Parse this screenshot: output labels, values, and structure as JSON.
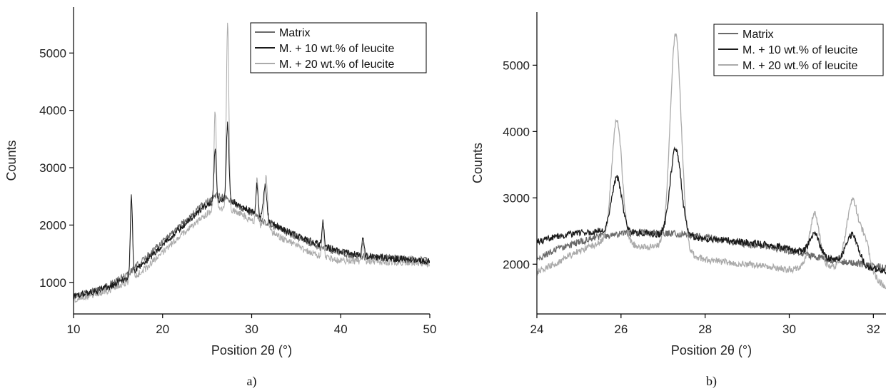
{
  "colors": {
    "matrix": "#6a6a6a",
    "leucite10": "#1a1a1a",
    "leucite20": "#ababab"
  },
  "chart_data": [
    {
      "type": "line",
      "panel_label": "a)",
      "xlabel": "Position 2θ (°)",
      "ylabel": "Counts",
      "xlim": [
        10,
        50
      ],
      "ylim": [
        450,
        5800
      ],
      "xticks": [
        10,
        20,
        30,
        40,
        50
      ],
      "yticks": [
        1000,
        2000,
        3000,
        4000,
        5000
      ],
      "grid": false,
      "legend_position": "top-right",
      "noise": 60,
      "series": [
        {
          "name": "Matrix",
          "color": "#6a6a6a",
          "background": [
            [
              10,
              760
            ],
            [
              12,
              840
            ],
            [
              14,
              950
            ],
            [
              16,
              1130
            ],
            [
              18,
              1420
            ],
            [
              20,
              1720
            ],
            [
              22,
              2000
            ],
            [
              24,
              2280
            ],
            [
              25,
              2420
            ],
            [
              26,
              2510
            ],
            [
              27,
              2480
            ],
            [
              28,
              2380
            ],
            [
              30,
              2200
            ],
            [
              32,
              2010
            ],
            [
              34,
              1860
            ],
            [
              36,
              1720
            ],
            [
              38,
              1590
            ],
            [
              40,
              1500
            ],
            [
              42,
              1450
            ],
            [
              44,
              1440
            ],
            [
              46,
              1420
            ],
            [
              48,
              1400
            ],
            [
              50,
              1380
            ]
          ],
          "peaks": []
        },
        {
          "name": "M. + 10 wt.% of leucite",
          "color": "#1a1a1a",
          "background": [
            [
              10,
              760
            ],
            [
              12,
              830
            ],
            [
              14,
              920
            ],
            [
              16,
              1080
            ],
            [
              18,
              1350
            ],
            [
              20,
              1650
            ],
            [
              22,
              1950
            ],
            [
              24,
              2220
            ],
            [
              25,
              2350
            ],
            [
              26,
              2440
            ],
            [
              27,
              2450
            ],
            [
              28,
              2400
            ],
            [
              30,
              2230
            ],
            [
              32,
              2060
            ],
            [
              34,
              1890
            ],
            [
              36,
              1750
            ],
            [
              38,
              1640
            ],
            [
              40,
              1540
            ],
            [
              42,
              1480
            ],
            [
              44,
              1440
            ],
            [
              46,
              1410
            ],
            [
              48,
              1390
            ],
            [
              50,
              1370
            ]
          ],
          "peaks": [
            [
              16.5,
              1350,
              0.12
            ],
            [
              25.9,
              880,
              0.13
            ],
            [
              27.3,
              1330,
              0.14
            ],
            [
              30.6,
              520,
              0.12
            ],
            [
              31.5,
              600,
              0.18
            ],
            [
              38.0,
              450,
              0.12
            ],
            [
              42.5,
              300,
              0.12
            ]
          ]
        },
        {
          "name": "M. + 20 wt.% of leucite",
          "color": "#ababab",
          "background": [
            [
              10,
              700
            ],
            [
              12,
              770
            ],
            [
              14,
              860
            ],
            [
              16,
              1000
            ],
            [
              18,
              1230
            ],
            [
              20,
              1520
            ],
            [
              22,
              1820
            ],
            [
              24,
              2070
            ],
            [
              25,
              2200
            ],
            [
              26,
              2280
            ],
            [
              27,
              2300
            ],
            [
              28,
              2250
            ],
            [
              30,
              2080
            ],
            [
              32,
              1900
            ],
            [
              34,
              1720
            ],
            [
              36,
              1560
            ],
            [
              38,
              1440
            ],
            [
              40,
              1380
            ],
            [
              42,
              1370
            ],
            [
              44,
              1360
            ],
            [
              46,
              1350
            ],
            [
              48,
              1340
            ],
            [
              50,
              1330
            ]
          ],
          "peaks": [
            [
              16.5,
              1350,
              0.12
            ],
            [
              25.9,
              1720,
              0.13
            ],
            [
              27.3,
              3200,
              0.14
            ],
            [
              30.6,
              850,
              0.12
            ],
            [
              31.6,
              900,
              0.18
            ],
            [
              38.0,
              520,
              0.12
            ],
            [
              42.5,
              300,
              0.12
            ]
          ]
        }
      ]
    },
    {
      "type": "line",
      "panel_label": "b)",
      "xlabel": "Position 2θ (°)",
      "ylabel": "Counts",
      "xlim": [
        24,
        32.3
      ],
      "ylim": [
        1250,
        5800
      ],
      "xticks": [
        24,
        26,
        28,
        30,
        32
      ],
      "yticks": [
        2000,
        3000,
        4000,
        5000
      ],
      "grid": false,
      "legend_position": "top-right",
      "noise": 50,
      "series": [
        {
          "name": "Matrix",
          "color": "#6a6a6a",
          "background": [
            [
              24,
              2080
            ],
            [
              24.5,
              2230
            ],
            [
              25,
              2330
            ],
            [
              25.5,
              2420
            ],
            [
              26,
              2460
            ],
            [
              26.5,
              2480
            ],
            [
              27,
              2470
            ],
            [
              27.5,
              2450
            ],
            [
              28,
              2420
            ],
            [
              28.5,
              2350
            ],
            [
              29,
              2300
            ],
            [
              29.5,
              2270
            ],
            [
              30,
              2200
            ],
            [
              30.5,
              2130
            ],
            [
              31,
              2060
            ],
            [
              31.5,
              2020
            ],
            [
              32,
              1980
            ],
            [
              32.3,
              1940
            ]
          ],
          "peaks": []
        },
        {
          "name": "M. + 10 wt.% of leucite",
          "color": "#1a1a1a",
          "background": [
            [
              24,
              2330
            ],
            [
              24.5,
              2420
            ],
            [
              25,
              2470
            ],
            [
              25.5,
              2500
            ],
            [
              26,
              2480
            ],
            [
              26.5,
              2470
            ],
            [
              27,
              2440
            ],
            [
              27.5,
              2420
            ],
            [
              28,
              2380
            ],
            [
              28.5,
              2360
            ],
            [
              29,
              2330
            ],
            [
              29.5,
              2290
            ],
            [
              30,
              2230
            ],
            [
              30.5,
              2150
            ],
            [
              31,
              2080
            ],
            [
              31.5,
              2020
            ],
            [
              32,
              1930
            ],
            [
              32.3,
              1870
            ]
          ],
          "peaks": [
            [
              25.9,
              820,
              0.12
            ],
            [
              27.3,
              1330,
              0.13
            ],
            [
              30.6,
              320,
              0.12
            ],
            [
              31.5,
              420,
              0.14
            ]
          ]
        },
        {
          "name": "M. + 20 wt.% of leucite",
          "color": "#ababab",
          "background": [
            [
              24,
              1880
            ],
            [
              24.5,
              2030
            ],
            [
              25,
              2200
            ],
            [
              25.5,
              2330
            ],
            [
              26,
              2350
            ],
            [
              26.5,
              2250
            ],
            [
              27,
              2280
            ],
            [
              27.5,
              2180
            ],
            [
              28,
              2070
            ],
            [
              28.5,
              2030
            ],
            [
              29,
              2000
            ],
            [
              29.5,
              1960
            ],
            [
              30,
              1920
            ],
            [
              30.5,
              1950
            ],
            [
              31,
              1960
            ],
            [
              31.5,
              2000
            ],
            [
              32,
              1800
            ],
            [
              32.3,
              1650
            ]
          ],
          "peaks": [
            [
              25.9,
              1850,
              0.12
            ],
            [
              27.3,
              3250,
              0.13
            ],
            [
              30.6,
              800,
              0.12
            ],
            [
              31.5,
              950,
              0.14
            ],
            [
              31.8,
              450,
              0.12
            ]
          ]
        }
      ]
    }
  ]
}
